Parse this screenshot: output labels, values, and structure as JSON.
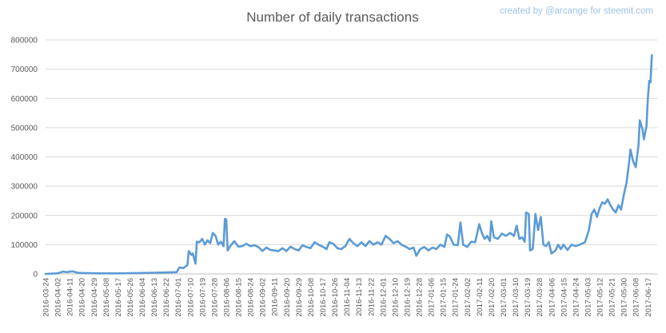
{
  "chart_data": {
    "type": "line",
    "title": "Number of daily transactions",
    "credit": "created by @arcange for steemit.com",
    "xlabel": "",
    "ylabel": "",
    "ylim": [
      0,
      800000
    ],
    "yticks": [
      0,
      100000,
      200000,
      300000,
      400000,
      500000,
      600000,
      700000,
      800000
    ],
    "ytick_labels": [
      "0",
      "100000",
      "200000",
      "300000",
      "400000",
      "500000",
      "600000",
      "700000",
      "800000"
    ],
    "xlim": [
      "2016-03-24",
      "2017-06-24"
    ],
    "xtick_labels": [
      "2016-03-24",
      "2016-04-02",
      "2016-04-11",
      "2016-04-20",
      "2016-04-29",
      "2016-05-08",
      "2016-05-17",
      "2016-05-26",
      "2016-06-04",
      "2016-06-13",
      "2016-06-22",
      "2016-07-01",
      "2016-07-10",
      "2016-07-19",
      "2016-07-28",
      "2016-08-06",
      "2016-08-15",
      "2016-08-24",
      "2016-09-02",
      "2016-09-11",
      "2016-09-20",
      "2016-09-29",
      "2016-10-08",
      "2016-10-17",
      "2016-10-26",
      "2016-11-04",
      "2016-11-13",
      "2016-11-22",
      "2016-12-01",
      "2016-12-10",
      "2016-12-19",
      "2016-12-28",
      "2017-01-06",
      "2017-01-15",
      "2017-01-24",
      "2017-02-02",
      "2017-02-11",
      "2017-02-20",
      "2017-03-01",
      "2017-03-10",
      "2017-03-19",
      "2017-03-28",
      "2017-04-06",
      "2017-04-15",
      "2017-04-24",
      "2017-05-03",
      "2017-05-12",
      "2017-05-21",
      "2017-05-30",
      "2017-06-08",
      "2017-06-17"
    ],
    "grid": true,
    "legend": "none",
    "series": [
      {
        "color": "#5b9bd5",
        "points": [
          [
            "2016-03-24",
            0
          ],
          [
            "2016-04-02",
            2000
          ],
          [
            "2016-04-06",
            8000
          ],
          [
            "2016-04-09",
            6000
          ],
          [
            "2016-04-13",
            9000
          ],
          [
            "2016-04-17",
            4000
          ],
          [
            "2016-04-22",
            3000
          ],
          [
            "2016-05-01",
            2000
          ],
          [
            "2016-05-17",
            2000
          ],
          [
            "2016-06-01",
            3000
          ],
          [
            "2016-06-13",
            4000
          ],
          [
            "2016-06-22",
            5000
          ],
          [
            "2016-06-30",
            6000
          ],
          [
            "2016-07-02",
            22000
          ],
          [
            "2016-07-05",
            20000
          ],
          [
            "2016-07-08",
            30000
          ],
          [
            "2016-07-09",
            78000
          ],
          [
            "2016-07-11",
            65000
          ],
          [
            "2016-07-12",
            70000
          ],
          [
            "2016-07-14",
            35000
          ],
          [
            "2016-07-15",
            110000
          ],
          [
            "2016-07-17",
            108000
          ],
          [
            "2016-07-19",
            120000
          ],
          [
            "2016-07-21",
            100000
          ],
          [
            "2016-07-23",
            115000
          ],
          [
            "2016-07-25",
            105000
          ],
          [
            "2016-07-27",
            140000
          ],
          [
            "2016-07-29",
            130000
          ],
          [
            "2016-07-31",
            100000
          ],
          [
            "2016-08-02",
            110000
          ],
          [
            "2016-08-04",
            95000
          ],
          [
            "2016-08-05",
            188000
          ],
          [
            "2016-08-06",
            186000
          ],
          [
            "2016-08-07",
            80000
          ],
          [
            "2016-08-09",
            95000
          ],
          [
            "2016-08-12",
            112000
          ],
          [
            "2016-08-15",
            93000
          ],
          [
            "2016-08-18",
            95000
          ],
          [
            "2016-08-21",
            103000
          ],
          [
            "2016-08-24",
            95000
          ],
          [
            "2016-08-27",
            98000
          ],
          [
            "2016-08-30",
            92000
          ],
          [
            "2016-09-02",
            78000
          ],
          [
            "2016-09-05",
            90000
          ],
          [
            "2016-09-08",
            82000
          ],
          [
            "2016-09-11",
            80000
          ],
          [
            "2016-09-14",
            78000
          ],
          [
            "2016-09-17",
            88000
          ],
          [
            "2016-09-20",
            78000
          ],
          [
            "2016-09-23",
            93000
          ],
          [
            "2016-09-26",
            85000
          ],
          [
            "2016-09-29",
            80000
          ],
          [
            "2016-10-02",
            98000
          ],
          [
            "2016-10-05",
            92000
          ],
          [
            "2016-10-08",
            88000
          ],
          [
            "2016-10-11",
            108000
          ],
          [
            "2016-10-14",
            100000
          ],
          [
            "2016-10-17",
            93000
          ],
          [
            "2016-10-20",
            85000
          ],
          [
            "2016-10-22",
            108000
          ],
          [
            "2016-10-25",
            103000
          ],
          [
            "2016-10-28",
            88000
          ],
          [
            "2016-10-31",
            85000
          ],
          [
            "2016-11-03",
            95000
          ],
          [
            "2016-11-06",
            120000
          ],
          [
            "2016-11-09",
            105000
          ],
          [
            "2016-11-12",
            95000
          ],
          [
            "2016-11-15",
            108000
          ],
          [
            "2016-11-18",
            95000
          ],
          [
            "2016-11-21",
            112000
          ],
          [
            "2016-11-24",
            100000
          ],
          [
            "2016-11-27",
            108000
          ],
          [
            "2016-11-30",
            100000
          ],
          [
            "2016-12-03",
            130000
          ],
          [
            "2016-12-06",
            120000
          ],
          [
            "2016-12-09",
            105000
          ],
          [
            "2016-12-12",
            112000
          ],
          [
            "2016-12-15",
            100000
          ],
          [
            "2016-12-18",
            93000
          ],
          [
            "2016-12-21",
            85000
          ],
          [
            "2016-12-24",
            90000
          ],
          [
            "2016-12-26",
            62000
          ],
          [
            "2016-12-29",
            85000
          ],
          [
            "2017-01-01",
            92000
          ],
          [
            "2017-01-04",
            80000
          ],
          [
            "2017-01-07",
            90000
          ],
          [
            "2017-01-10",
            85000
          ],
          [
            "2017-01-13",
            100000
          ],
          [
            "2017-01-16",
            92000
          ],
          [
            "2017-01-18",
            135000
          ],
          [
            "2017-01-20",
            128000
          ],
          [
            "2017-01-23",
            100000
          ],
          [
            "2017-01-26",
            98000
          ],
          [
            "2017-01-28",
            176000
          ],
          [
            "2017-01-30",
            100000
          ],
          [
            "2017-02-02",
            92000
          ],
          [
            "2017-02-05",
            110000
          ],
          [
            "2017-02-08",
            108000
          ],
          [
            "2017-02-11",
            170000
          ],
          [
            "2017-02-13",
            140000
          ],
          [
            "2017-02-15",
            120000
          ],
          [
            "2017-02-17",
            130000
          ],
          [
            "2017-02-19",
            112000
          ],
          [
            "2017-02-20",
            180000
          ],
          [
            "2017-02-22",
            125000
          ],
          [
            "2017-02-25",
            120000
          ],
          [
            "2017-02-28",
            138000
          ],
          [
            "2017-03-03",
            130000
          ],
          [
            "2017-03-06",
            140000
          ],
          [
            "2017-03-09",
            130000
          ],
          [
            "2017-03-11",
            165000
          ],
          [
            "2017-03-13",
            120000
          ],
          [
            "2017-03-15",
            125000
          ],
          [
            "2017-03-17",
            110000
          ],
          [
            "2017-03-18",
            210000
          ],
          [
            "2017-03-20",
            205000
          ],
          [
            "2017-03-21",
            80000
          ],
          [
            "2017-03-23",
            85000
          ],
          [
            "2017-03-25",
            205000
          ],
          [
            "2017-03-27",
            150000
          ],
          [
            "2017-03-29",
            195000
          ],
          [
            "2017-03-31",
            100000
          ],
          [
            "2017-04-02",
            95000
          ],
          [
            "2017-04-04",
            108000
          ],
          [
            "2017-04-06",
            70000
          ],
          [
            "2017-04-09",
            80000
          ],
          [
            "2017-04-11",
            100000
          ],
          [
            "2017-04-13",
            85000
          ],
          [
            "2017-04-15",
            100000
          ],
          [
            "2017-04-18",
            82000
          ],
          [
            "2017-04-21",
            100000
          ],
          [
            "2017-04-24",
            95000
          ],
          [
            "2017-04-27",
            100000
          ],
          [
            "2017-05-01",
            108000
          ],
          [
            "2017-05-04",
            150000
          ],
          [
            "2017-05-06",
            205000
          ],
          [
            "2017-05-08",
            220000
          ],
          [
            "2017-05-10",
            195000
          ],
          [
            "2017-05-12",
            225000
          ],
          [
            "2017-05-14",
            245000
          ],
          [
            "2017-05-16",
            240000
          ],
          [
            "2017-05-18",
            255000
          ],
          [
            "2017-05-20",
            235000
          ],
          [
            "2017-05-22",
            220000
          ],
          [
            "2017-05-24",
            210000
          ],
          [
            "2017-05-26",
            235000
          ],
          [
            "2017-05-28",
            220000
          ],
          [
            "2017-05-30",
            270000
          ],
          [
            "2017-06-01",
            310000
          ],
          [
            "2017-06-03",
            380000
          ],
          [
            "2017-06-04",
            425000
          ],
          [
            "2017-06-06",
            385000
          ],
          [
            "2017-06-08",
            365000
          ],
          [
            "2017-06-10",
            440000
          ],
          [
            "2017-06-11",
            525000
          ],
          [
            "2017-06-13",
            495000
          ],
          [
            "2017-06-14",
            460000
          ],
          [
            "2017-06-16",
            505000
          ],
          [
            "2017-06-17",
            600000
          ],
          [
            "2017-06-18",
            660000
          ],
          [
            "2017-06-19",
            655000
          ],
          [
            "2017-06-20",
            748000
          ]
        ]
      }
    ]
  }
}
